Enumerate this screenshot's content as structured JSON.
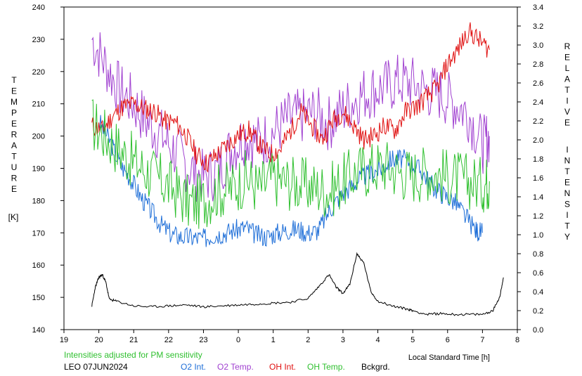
{
  "chart_data": {
    "type": "line",
    "left_axis_label_letters": [
      "T",
      "E",
      "M",
      "P",
      "E",
      "R",
      "A",
      "T",
      "U",
      "R",
      "E"
    ],
    "left_axis_unit": "[K]",
    "right_axis_label_letters_1": [
      "R",
      "E",
      "L",
      "A",
      "T",
      "I",
      "V",
      "E"
    ],
    "right_axis_label_letters_2": [
      "I",
      "N",
      "T",
      "E",
      "N",
      "S",
      "I",
      "T",
      "Y"
    ],
    "xlabel": "Local Standard Time [h]",
    "x_ticks": [
      19,
      20,
      21,
      22,
      23,
      0,
      1,
      2,
      3,
      4,
      5,
      6,
      7,
      8
    ],
    "x_range": [
      19,
      32
    ],
    "y_left_range": [
      140,
      240
    ],
    "y_left_ticks": [
      140,
      150,
      160,
      170,
      180,
      190,
      200,
      210,
      220,
      230,
      240
    ],
    "y_right_range": [
      0.0,
      3.4
    ],
    "y_right_ticks": [
      "0.0",
      "0.2",
      "0.4",
      "0.6",
      "0.8",
      "1.0",
      "1.2",
      "1.4",
      "1.6",
      "1.8",
      "2.0",
      "2.2",
      "2.4",
      "2.6",
      "2.8",
      "3.0",
      "3.2",
      "3.4"
    ],
    "note": "Intensities adjusted for PM sensitivity",
    "station_date": "LEO 07JUN2024",
    "series": [
      {
        "name": "O2 Int.",
        "color": "#1f6fd8",
        "axis": "right",
        "x": [
          20.0,
          20.3,
          20.6,
          20.9,
          21.2,
          21.5,
          21.8,
          22.1,
          22.4,
          22.7,
          23.0,
          23.3,
          23.6,
          23.9,
          24.2,
          24.5,
          24.8,
          25.1,
          25.4,
          25.7,
          26.0,
          26.3,
          26.6,
          26.9,
          27.2,
          27.5,
          27.8,
          28.1,
          28.4,
          28.7,
          29.0,
          29.3,
          29.6,
          29.9,
          30.2,
          30.5,
          30.8,
          31.0
        ],
        "y": [
          2.2,
          2.0,
          1.75,
          1.6,
          1.4,
          1.25,
          1.1,
          1.0,
          0.98,
          0.97,
          0.96,
          1.0,
          1.02,
          1.05,
          1.08,
          1.0,
          0.98,
          1.02,
          1.05,
          1.06,
          1.02,
          1.05,
          1.25,
          1.4,
          1.5,
          1.6,
          1.65,
          1.7,
          1.8,
          1.8,
          1.75,
          1.65,
          1.5,
          1.42,
          1.35,
          1.2,
          1.05,
          1.02
        ]
      },
      {
        "name": "O2 Temp.",
        "color": "#a040d0",
        "axis": "left",
        "x": [
          19.8,
          20.2,
          20.6,
          21.0,
          21.4,
          21.8,
          22.2,
          22.6,
          23.0,
          23.4,
          23.8,
          24.2,
          24.6,
          25.0,
          25.4,
          25.8,
          26.2,
          26.6,
          27.0,
          27.4,
          27.8,
          28.2,
          28.6,
          29.0,
          29.4,
          29.8,
          30.2,
          30.6,
          31.0,
          31.2
        ],
        "y": [
          230,
          222,
          214,
          210,
          204,
          200,
          195,
          190,
          187,
          189,
          196,
          200,
          198,
          201,
          205,
          206,
          207,
          204,
          208,
          212,
          214,
          215,
          217,
          216,
          214,
          213,
          210,
          207,
          197,
          200
        ]
      },
      {
        "name": "OH Int.",
        "color": "#e01010",
        "axis": "right",
        "x": [
          19.8,
          20.1,
          20.4,
          20.7,
          21.0,
          21.3,
          21.6,
          21.9,
          22.2,
          22.5,
          22.8,
          23.1,
          23.4,
          23.7,
          24.0,
          24.3,
          24.6,
          24.9,
          25.2,
          25.5,
          25.8,
          26.1,
          26.4,
          26.7,
          27.0,
          27.3,
          27.6,
          27.9,
          28.2,
          28.5,
          28.8,
          29.1,
          29.4,
          29.7,
          30.0,
          30.3,
          30.6,
          30.9,
          31.2
        ],
        "y": [
          2.15,
          2.1,
          2.25,
          2.35,
          2.38,
          2.33,
          2.3,
          2.2,
          2.18,
          2.05,
          1.85,
          1.75,
          1.85,
          1.95,
          2.05,
          2.1,
          1.95,
          1.85,
          1.9,
          2.1,
          2.3,
          2.15,
          2.0,
          2.2,
          2.3,
          2.15,
          2.0,
          2.05,
          2.15,
          2.1,
          2.3,
          2.35,
          2.45,
          2.55,
          2.8,
          2.95,
          3.15,
          3.05,
          2.95
        ]
      },
      {
        "name": "OH Temp.",
        "color": "#30c030",
        "axis": "left",
        "x": [
          19.8,
          20.2,
          20.6,
          21.0,
          21.4,
          21.8,
          22.2,
          22.6,
          23.0,
          23.4,
          23.8,
          24.2,
          24.6,
          25.0,
          25.4,
          25.8,
          26.2,
          26.6,
          27.0,
          27.4,
          27.8,
          28.2,
          28.6,
          29.0,
          29.4,
          29.8,
          30.2,
          30.6,
          31.0,
          31.2
        ],
        "y": [
          204,
          200,
          196,
          192,
          189,
          186,
          183,
          179,
          180,
          183,
          184,
          187,
          184,
          187,
          186,
          185,
          184,
          183,
          186,
          189,
          190,
          191,
          189,
          188,
          189,
          188,
          187,
          186,
          185,
          186
        ]
      },
      {
        "name": "Bckgrd.",
        "color": "#000000",
        "axis": "right",
        "x": [
          19.8,
          19.9,
          20.0,
          20.1,
          20.2,
          20.3,
          20.5,
          21.0,
          21.5,
          22.0,
          22.5,
          23.0,
          23.5,
          24.0,
          24.5,
          25.0,
          25.5,
          26.0,
          26.3,
          26.6,
          26.8,
          27.0,
          27.2,
          27.4,
          27.6,
          27.8,
          28.0,
          28.4,
          28.8,
          29.0,
          29.4,
          29.8,
          30.2,
          30.6,
          31.0,
          31.3,
          31.5,
          31.6
        ],
        "y": [
          0.25,
          0.45,
          0.55,
          0.58,
          0.5,
          0.32,
          0.3,
          0.25,
          0.24,
          0.25,
          0.26,
          0.24,
          0.25,
          0.26,
          0.27,
          0.28,
          0.29,
          0.33,
          0.45,
          0.58,
          0.45,
          0.38,
          0.48,
          0.8,
          0.7,
          0.4,
          0.3,
          0.25,
          0.22,
          0.2,
          0.16,
          0.17,
          0.16,
          0.16,
          0.16,
          0.2,
          0.35,
          0.55
        ]
      }
    ]
  }
}
